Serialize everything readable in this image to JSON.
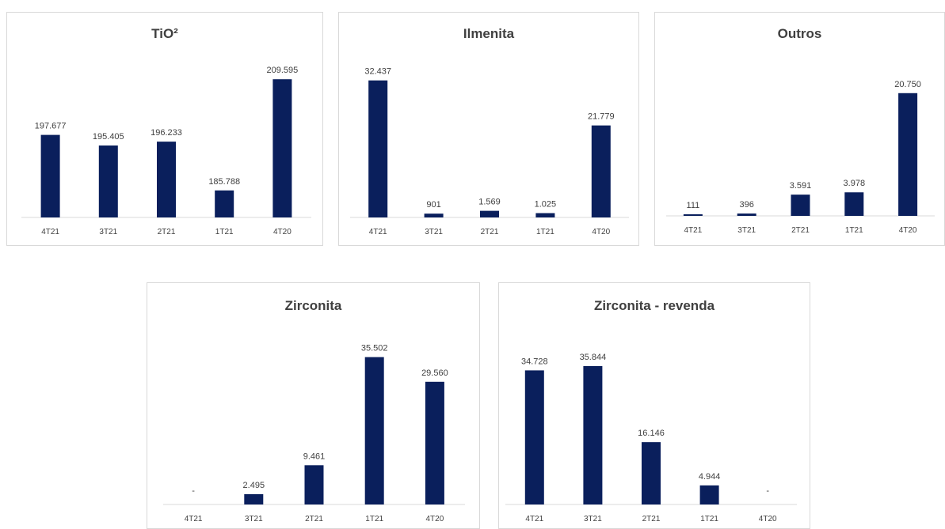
{
  "bar_color": "#0a1f5c",
  "axis_color": "#d9d9d9",
  "chart_data": [
    {
      "type": "bar",
      "title": "TiO²",
      "categories": [
        "4T21",
        "3T21",
        "2T21",
        "1T21",
        "4T20"
      ],
      "values": [
        197677,
        195405,
        196233,
        185788,
        209595
      ],
      "labels": [
        "197.677",
        "195.405",
        "196.233",
        "185.788",
        "209.595"
      ],
      "ylim": [
        180000,
        212000
      ]
    },
    {
      "type": "bar",
      "title": "Ilmenita",
      "categories": [
        "4T21",
        "3T21",
        "2T21",
        "1T21",
        "4T20"
      ],
      "values": [
        32437,
        901,
        1569,
        1025,
        21779
      ],
      "labels": [
        "32.437",
        "901",
        "1.569",
        "1.025",
        "21.779"
      ],
      "ylim": [
        0,
        35000
      ]
    },
    {
      "type": "bar",
      "title": "Outros",
      "categories": [
        "4T21",
        "3T21",
        "2T21",
        "1T21",
        "4T20"
      ],
      "values": [
        111,
        396,
        3591,
        3978,
        20750
      ],
      "labels": [
        "111",
        "396",
        "3.591",
        "3.978",
        "20.750"
      ],
      "ylim": [
        0,
        25000
      ]
    },
    {
      "type": "bar",
      "title": "Zirconita",
      "categories": [
        "4T21",
        "3T21",
        "2T21",
        "1T21",
        "4T20"
      ],
      "values": [
        0,
        2495,
        9461,
        35502,
        29560
      ],
      "labels": [
        "-",
        "2.495",
        "9.461",
        "35.502",
        "29.560"
      ],
      "ylim": [
        0,
        40000
      ]
    },
    {
      "type": "bar",
      "title": "Zirconita - revenda",
      "categories": [
        "4T21",
        "3T21",
        "2T21",
        "1T21",
        "4T20"
      ],
      "values": [
        34728,
        35844,
        16146,
        4944,
        0
      ],
      "labels": [
        "34.728",
        "35.844",
        "16.146",
        "4.944",
        "-"
      ],
      "ylim": [
        0,
        43000
      ]
    }
  ]
}
